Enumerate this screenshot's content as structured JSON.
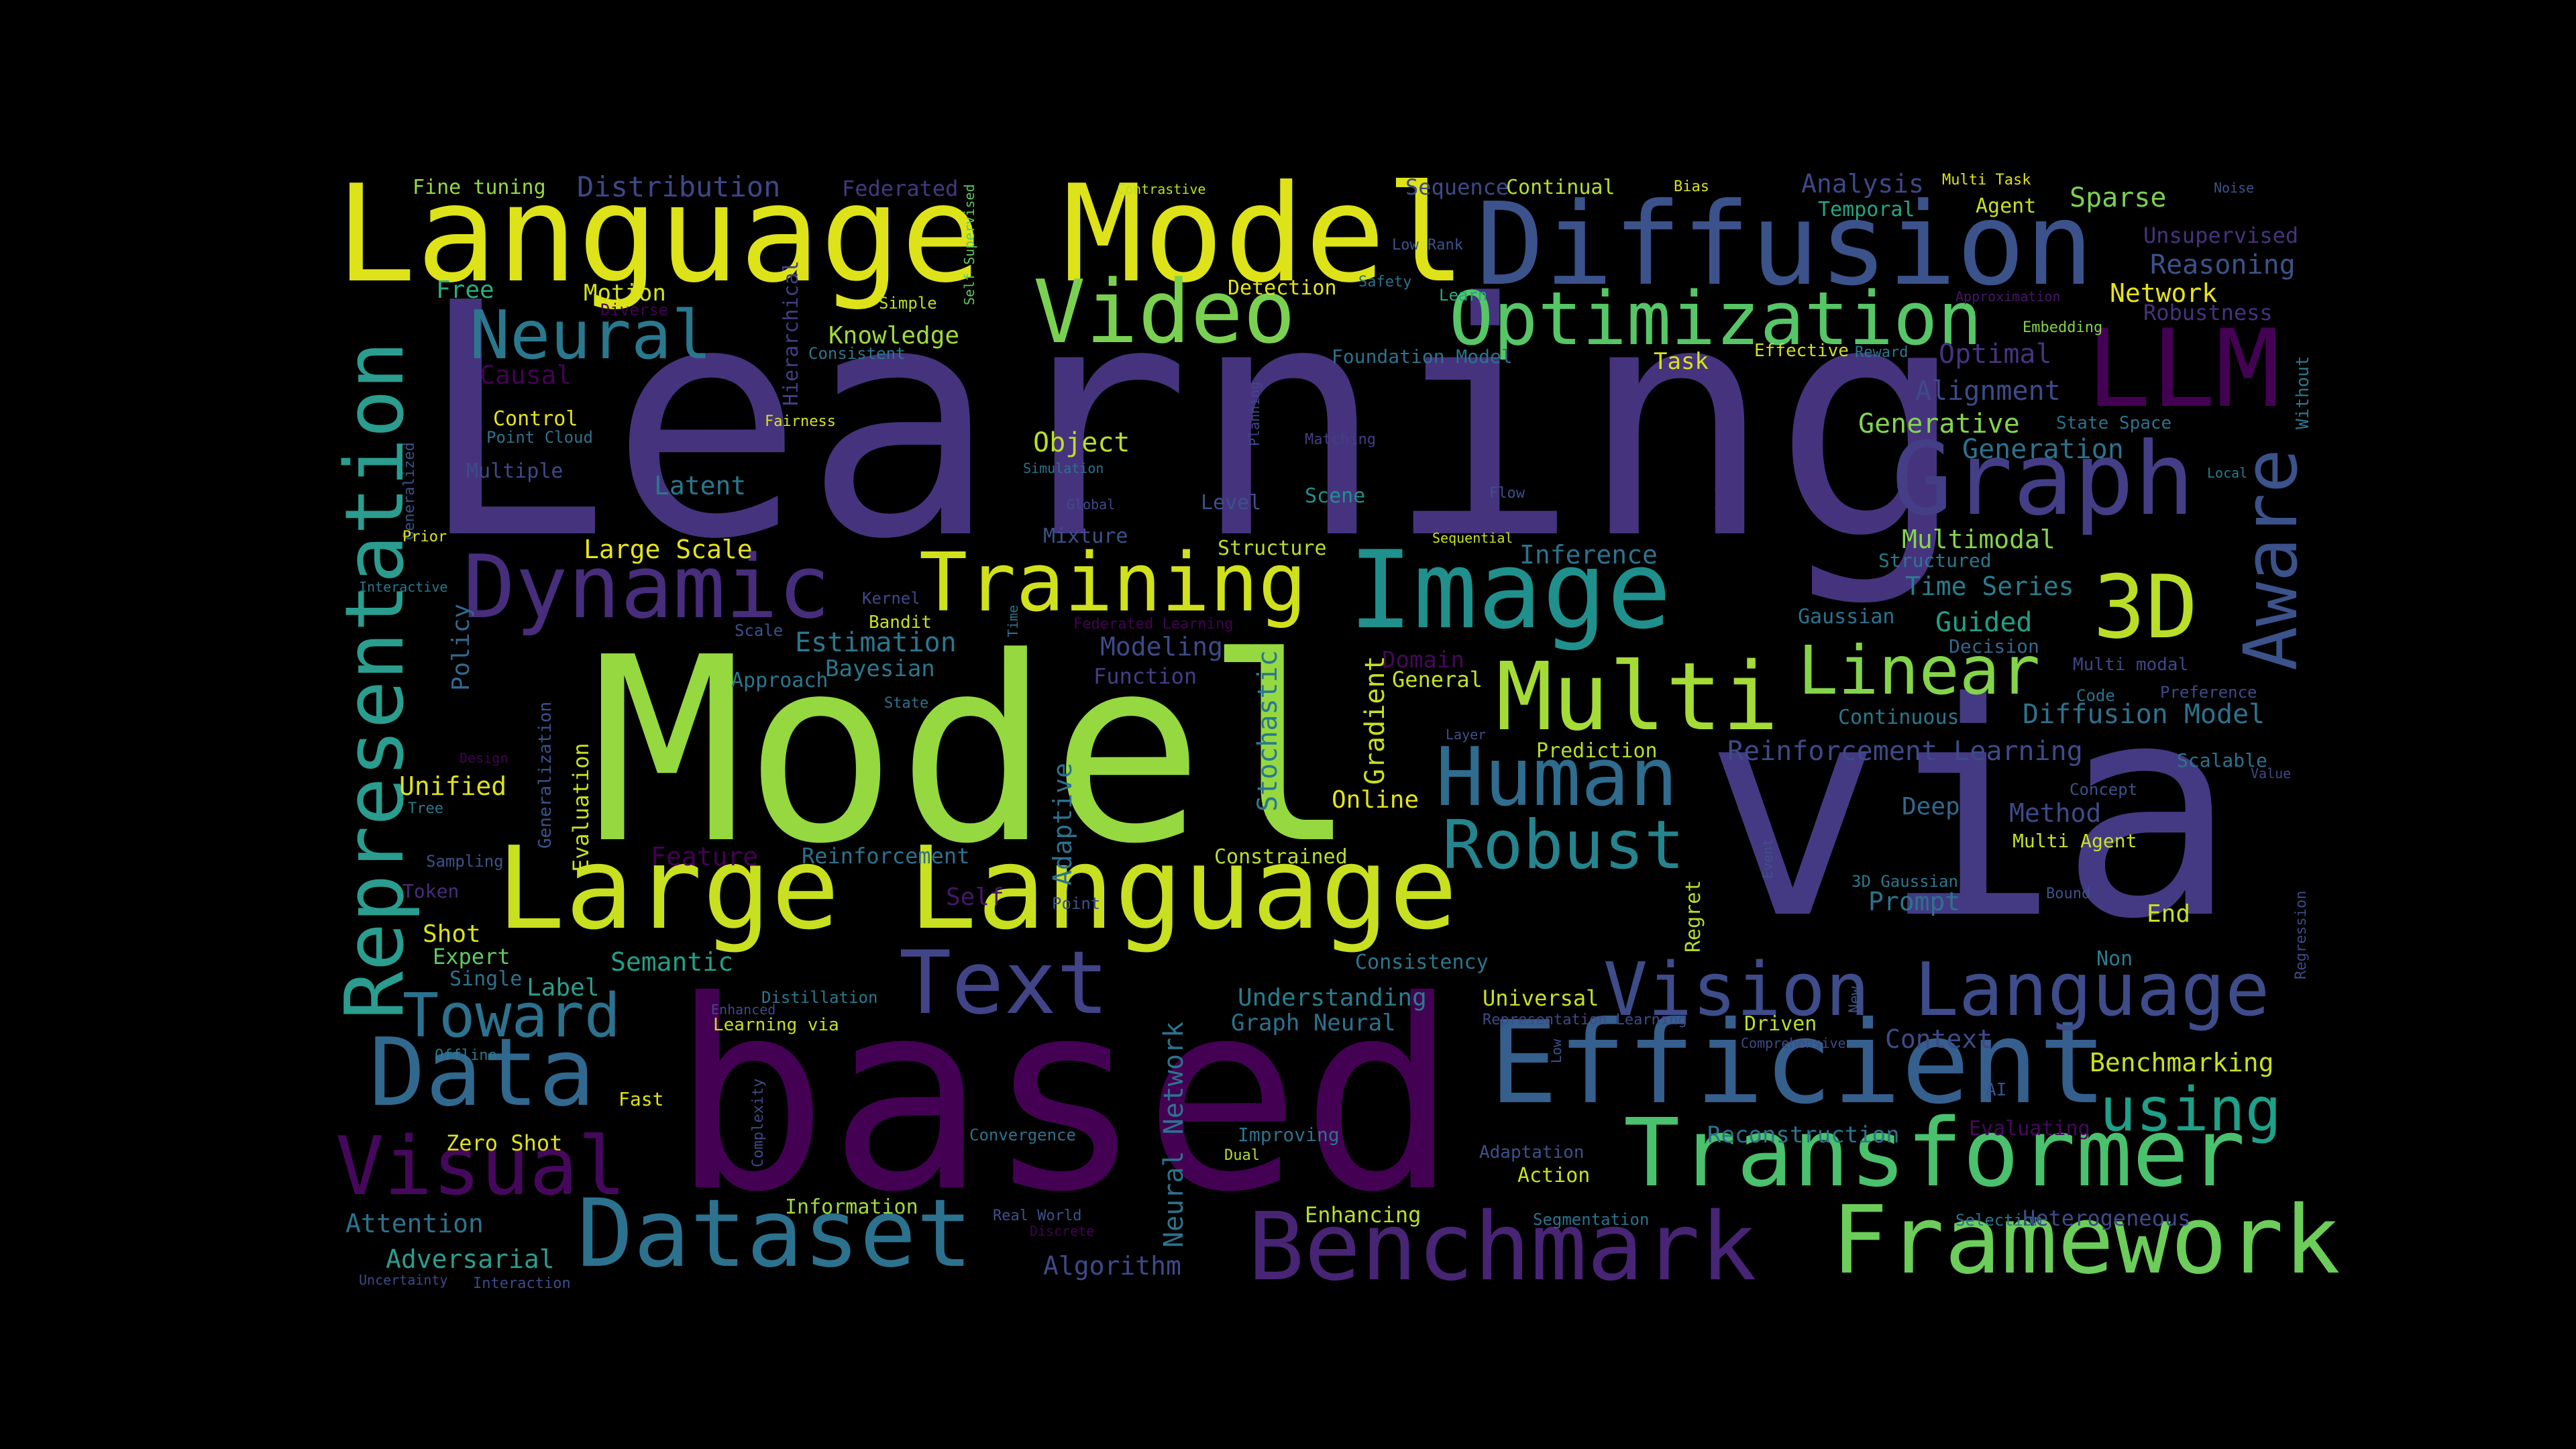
{
  "words": [
    {
      "text": "Learning",
      "color": "#46337e"
    },
    {
      "text": "Model",
      "color": "#95d840"
    },
    {
      "text": "via",
      "color": "#443a83"
    },
    {
      "text": "based",
      "color": "#440154"
    },
    {
      "text": "Language Model",
      "color": "#dde318"
    },
    {
      "text": "Diffusion",
      "color": "#3b528b"
    },
    {
      "text": "Large Language",
      "color": "#c8e020"
    },
    {
      "text": "Representation",
      "color": "#2a9d8f"
    },
    {
      "text": "Efficient",
      "color": "#355f8d"
    },
    {
      "text": "Transformer",
      "color": "#4ac16d"
    },
    {
      "text": "Framework",
      "color": "#6ccd5a"
    },
    {
      "text": "Benchmark",
      "color": "#482475"
    },
    {
      "text": "Dataset",
      "color": "#2c728e"
    },
    {
      "text": "Image",
      "color": "#20908d"
    },
    {
      "text": "Video",
      "color": "#7ad151"
    },
    {
      "text": "Optimization",
      "color": "#56c667"
    },
    {
      "text": "Training",
      "color": "#d0e11c"
    },
    {
      "text": "Dynamic",
      "color": "#472d7b"
    },
    {
      "text": "Graph",
      "color": "#433e85"
    },
    {
      "text": "LLM",
      "color": "#440154"
    },
    {
      "text": "Multi",
      "color": "#a5db36"
    },
    {
      "text": "Human",
      "color": "#2f6c8e"
    },
    {
      "text": "Text",
      "color": "#414487"
    },
    {
      "text": "Data",
      "color": "#31688e"
    },
    {
      "text": "Visual",
      "color": "#46085c"
    },
    {
      "text": "Vision Language",
      "color": "#3e4c8a"
    },
    {
      "text": "Linear",
      "color": "#84d44b"
    },
    {
      "text": "Robust",
      "color": "#25848e"
    },
    {
      "text": "3D",
      "color": "#bade28"
    },
    {
      "text": "Aware",
      "color": "#3b528b"
    },
    {
      "text": "Neural",
      "color": "#2a788e"
    },
    {
      "text": "Toward",
      "color": "#2c728e"
    },
    {
      "text": "using",
      "color": "#1fa088"
    },
    {
      "text": "Fine tuning",
      "color": "#95d840"
    },
    {
      "text": "Distribution",
      "color": "#3f4788"
    },
    {
      "text": "Federated",
      "color": "#453781"
    },
    {
      "text": "Self Supervised",
      "color": "#5ec962"
    },
    {
      "text": "Contrastive",
      "color": "#b5de2b"
    },
    {
      "text": "Sequence",
      "color": "#3e4a89"
    },
    {
      "text": "Continual",
      "color": "#b5de2b"
    },
    {
      "text": "Bias",
      "color": "#d8e219"
    },
    {
      "text": "Analysis",
      "color": "#3f4788"
    },
    {
      "text": "Temporal",
      "color": "#22a785"
    },
    {
      "text": "Multi Task",
      "color": "#dde318"
    },
    {
      "text": "Agent",
      "color": "#c8e020"
    },
    {
      "text": "Sparse",
      "color": "#7ad151"
    },
    {
      "text": "Noise",
      "color": "#3b528b"
    },
    {
      "text": "Unsupervised",
      "color": "#46337e"
    },
    {
      "text": "Reasoning",
      "color": "#3b528b"
    },
    {
      "text": "Network",
      "color": "#e5e419"
    },
    {
      "text": "Robustness",
      "color": "#46327e"
    },
    {
      "text": "Approximation",
      "color": "#481668"
    },
    {
      "text": "Embedding",
      "color": "#84d44b"
    },
    {
      "text": "Optimal",
      "color": "#46337e"
    },
    {
      "text": "Alignment",
      "color": "#3e4a89"
    },
    {
      "text": "Generative",
      "color": "#84d44b"
    },
    {
      "text": "State Space",
      "color": "#2c728e"
    },
    {
      "text": "Generation",
      "color": "#2c728e"
    },
    {
      "text": "Local",
      "color": "#287d8e"
    },
    {
      "text": "Without",
      "color": "#2a788e"
    },
    {
      "text": "Free",
      "color": "#29af7f"
    },
    {
      "text": "Motion",
      "color": "#d2e21b"
    },
    {
      "text": "Hierarchical",
      "color": "#433e85"
    },
    {
      "text": "Diverse",
      "color": "#440154"
    },
    {
      "text": "Simple",
      "color": "#bade28"
    },
    {
      "text": "Knowledge",
      "color": "#a0da39"
    },
    {
      "text": "Consistent",
      "color": "#2a788e"
    },
    {
      "text": "Detection",
      "color": "#e5e419"
    },
    {
      "text": "Low Rank",
      "color": "#3b528b"
    },
    {
      "text": "Safety",
      "color": "#2c728e"
    },
    {
      "text": "Learn",
      "color": "#22a785"
    },
    {
      "text": "Effective",
      "color": "#d2e21b"
    },
    {
      "text": "Reward",
      "color": "#2a788e"
    },
    {
      "text": "Foundation Model",
      "color": "#2c728e"
    },
    {
      "text": "Task",
      "color": "#d8e219"
    },
    {
      "text": "Causal",
      "color": "#440154"
    },
    {
      "text": "Control",
      "color": "#e5e419"
    },
    {
      "text": "Point Cloud",
      "color": "#2c728e"
    },
    {
      "text": "Fairness",
      "color": "#d8e219"
    },
    {
      "text": "Generalized",
      "color": "#3b528b"
    },
    {
      "text": "Multiple",
      "color": "#3e4a89"
    },
    {
      "text": "Latent",
      "color": "#2a788e"
    },
    {
      "text": "Object",
      "color": "#bade28"
    },
    {
      "text": "Planning",
      "color": "#3e4a89"
    },
    {
      "text": "Matching",
      "color": "#433e85"
    },
    {
      "text": "Simulation",
      "color": "#2c728e"
    },
    {
      "text": "Global",
      "color": "#3e4a89"
    },
    {
      "text": "Scene",
      "color": "#20908d"
    },
    {
      "text": "Flow",
      "color": "#3b528b"
    },
    {
      "text": "Vision",
      "color": "#46337e"
    },
    {
      "text": "Prior",
      "color": "#dde318"
    },
    {
      "text": "Large Scale",
      "color": "#e5e419"
    },
    {
      "text": "Mixture",
      "color": "#3b528b"
    },
    {
      "text": "Level",
      "color": "#3b528b"
    },
    {
      "text": "Structure",
      "color": "#bade28"
    },
    {
      "text": "Sequential",
      "color": "#c8e020"
    },
    {
      "text": "Inference",
      "color": "#2c728e"
    },
    {
      "text": "Multimodal",
      "color": "#84d44b"
    },
    {
      "text": "Structured",
      "color": "#2a788e"
    },
    {
      "text": "Time Series",
      "color": "#287d8e"
    },
    {
      "text": "Guided",
      "color": "#1fa088"
    },
    {
      "text": "Interactive",
      "color": "#2a788e"
    },
    {
      "text": "Policy",
      "color": "#31688e"
    },
    {
      "text": "Kernel",
      "color": "#3e4a89"
    },
    {
      "text": "Bandit",
      "color": "#c8e020"
    },
    {
      "text": "Time",
      "color": "#2c728e"
    },
    {
      "text": "Federated Learning",
      "color": "#440154"
    },
    {
      "text": "Scale",
      "color": "#3b528b"
    },
    {
      "text": "Estimation",
      "color": "#2a788e"
    },
    {
      "text": "Modeling",
      "color": "#3e4a89"
    },
    {
      "text": "Gaussian",
      "color": "#2c728e"
    },
    {
      "text": "Decision",
      "color": "#31688e"
    },
    {
      "text": "Approach",
      "color": "#2a788e"
    },
    {
      "text": "Bayesian",
      "color": "#2a788e"
    },
    {
      "text": "Function",
      "color": "#433e85"
    },
    {
      "text": "Domain",
      "color": "#46085c"
    },
    {
      "text": "General",
      "color": "#c8e020"
    },
    {
      "text": "Multi modal",
      "color": "#3f4788"
    },
    {
      "text": "Preference",
      "color": "#3e4a89"
    },
    {
      "text": "Code",
      "color": "#2c728e"
    },
    {
      "text": "State",
      "color": "#2c728e"
    },
    {
      "text": "Stochastic",
      "color": "#2a788e"
    },
    {
      "text": "Gradient",
      "color": "#c8e020"
    },
    {
      "text": "Continuous",
      "color": "#2a788e"
    },
    {
      "text": "Diffusion Model",
      "color": "#2c728e"
    },
    {
      "text": "Layer",
      "color": "#3b528b"
    },
    {
      "text": "Prediction",
      "color": "#b5de2b"
    },
    {
      "text": "Reinforcement Learning",
      "color": "#3e4a89"
    },
    {
      "text": "Scalable",
      "color": "#2c728e"
    },
    {
      "text": "Design",
      "color": "#440154"
    },
    {
      "text": "Generalization",
      "color": "#3b528b"
    },
    {
      "text": "Evaluation",
      "color": "#c8e020"
    },
    {
      "text": "Unified",
      "color": "#dde318"
    },
    {
      "text": "Tree",
      "color": "#2a788e"
    },
    {
      "text": "Adaptive",
      "color": "#2c728e"
    },
    {
      "text": "Online",
      "color": "#e5e419"
    },
    {
      "text": "Value",
      "color": "#3e4a89"
    },
    {
      "text": "Concept",
      "color": "#3b528b"
    },
    {
      "text": "Deep",
      "color": "#31688e"
    },
    {
      "text": "Method",
      "color": "#3e4a89"
    },
    {
      "text": "Multi Agent",
      "color": "#c8e020"
    },
    {
      "text": "Sampling",
      "color": "#3b528b"
    },
    {
      "text": "Feature",
      "color": "#440154"
    },
    {
      "text": "Reinforcement",
      "color": "#2c728e"
    },
    {
      "text": "Constrained",
      "color": "#bade28"
    },
    {
      "text": "Event",
      "color": "#3b528b"
    },
    {
      "text": "Token",
      "color": "#472d7b"
    },
    {
      "text": "Self",
      "color": "#481668"
    },
    {
      "text": "Point",
      "color": "#3b528b"
    },
    {
      "text": "3D Gaussian",
      "color": "#2a788e"
    },
    {
      "text": "Prompt",
      "color": "#2c728e"
    },
    {
      "text": "Bound",
      "color": "#3b528b"
    },
    {
      "text": "End",
      "color": "#c8e020"
    },
    {
      "text": "Regression",
      "color": "#3e4a89"
    },
    {
      "text": "Shot",
      "color": "#dde318"
    },
    {
      "text": "Expert",
      "color": "#5ec962"
    },
    {
      "text": "Semantic",
      "color": "#1fa088"
    },
    {
      "text": "Consistency",
      "color": "#2a788e"
    },
    {
      "text": "Regret",
      "color": "#b5de2b"
    },
    {
      "text": "Non",
      "color": "#287d8e"
    },
    {
      "text": "Single",
      "color": "#2c728e"
    },
    {
      "text": "Label",
      "color": "#2a9d8f"
    },
    {
      "text": "Distillation",
      "color": "#2a788e"
    },
    {
      "text": "Enhanced",
      "color": "#3e4a89"
    },
    {
      "text": "Understanding",
      "color": "#287d8e"
    },
    {
      "text": "Universal",
      "color": "#c8e020"
    },
    {
      "text": "New",
      "color": "#3b528b"
    },
    {
      "text": "Representation Learning",
      "color": "#3e4a89"
    },
    {
      "text": "Driven",
      "color": "#bade28"
    },
    {
      "text": "Comprehensive",
      "color": "#3e4a89"
    },
    {
      "text": "Context",
      "color": "#3e4a89"
    },
    {
      "text": "Offline",
      "color": "#2a788e"
    },
    {
      "text": "Learning via",
      "color": "#c8e020"
    },
    {
      "text": "Neural Network",
      "color": "#2c728e"
    },
    {
      "text": "Graph Neural",
      "color": "#2c728e"
    },
    {
      "text": "Low",
      "color": "#3b528b"
    },
    {
      "text": "Benchmarking",
      "color": "#c8e020"
    },
    {
      "text": "Fast",
      "color": "#dde318"
    },
    {
      "text": "Zero Shot",
      "color": "#dde318"
    },
    {
      "text": "Complexity",
      "color": "#3e4a89"
    },
    {
      "text": "Convergence",
      "color": "#2c728e"
    },
    {
      "text": "Improving",
      "color": "#2c728e"
    },
    {
      "text": "Reconstruction",
      "color": "#2c728e"
    },
    {
      "text": "AI",
      "color": "#3b528b"
    },
    {
      "text": "Evaluating",
      "color": "#46085c"
    },
    {
      "text": "Dual",
      "color": "#bade28"
    },
    {
      "text": "Adaptation",
      "color": "#3b528b"
    },
    {
      "text": "Action",
      "color": "#c8e020"
    },
    {
      "text": "Attention",
      "color": "#2c728e"
    },
    {
      "text": "Information",
      "color": "#a0da39"
    },
    {
      "text": "Real World",
      "color": "#3b528b"
    },
    {
      "text": "Discrete",
      "color": "#440154"
    },
    {
      "text": "Enhancing",
      "color": "#bade28"
    },
    {
      "text": "Segmentation",
      "color": "#2c728e"
    },
    {
      "text": "Selection",
      "color": "#2c728e"
    },
    {
      "text": "Heterogeneous",
      "color": "#3e4a89"
    },
    {
      "text": "Adversarial",
      "color": "#2a9d8f"
    },
    {
      "text": "Uncertainty",
      "color": "#3e4a89"
    },
    {
      "text": "Interaction",
      "color": "#3e4a89"
    },
    {
      "text": "Algorithm",
      "color": "#3e4a89"
    }
  ]
}
